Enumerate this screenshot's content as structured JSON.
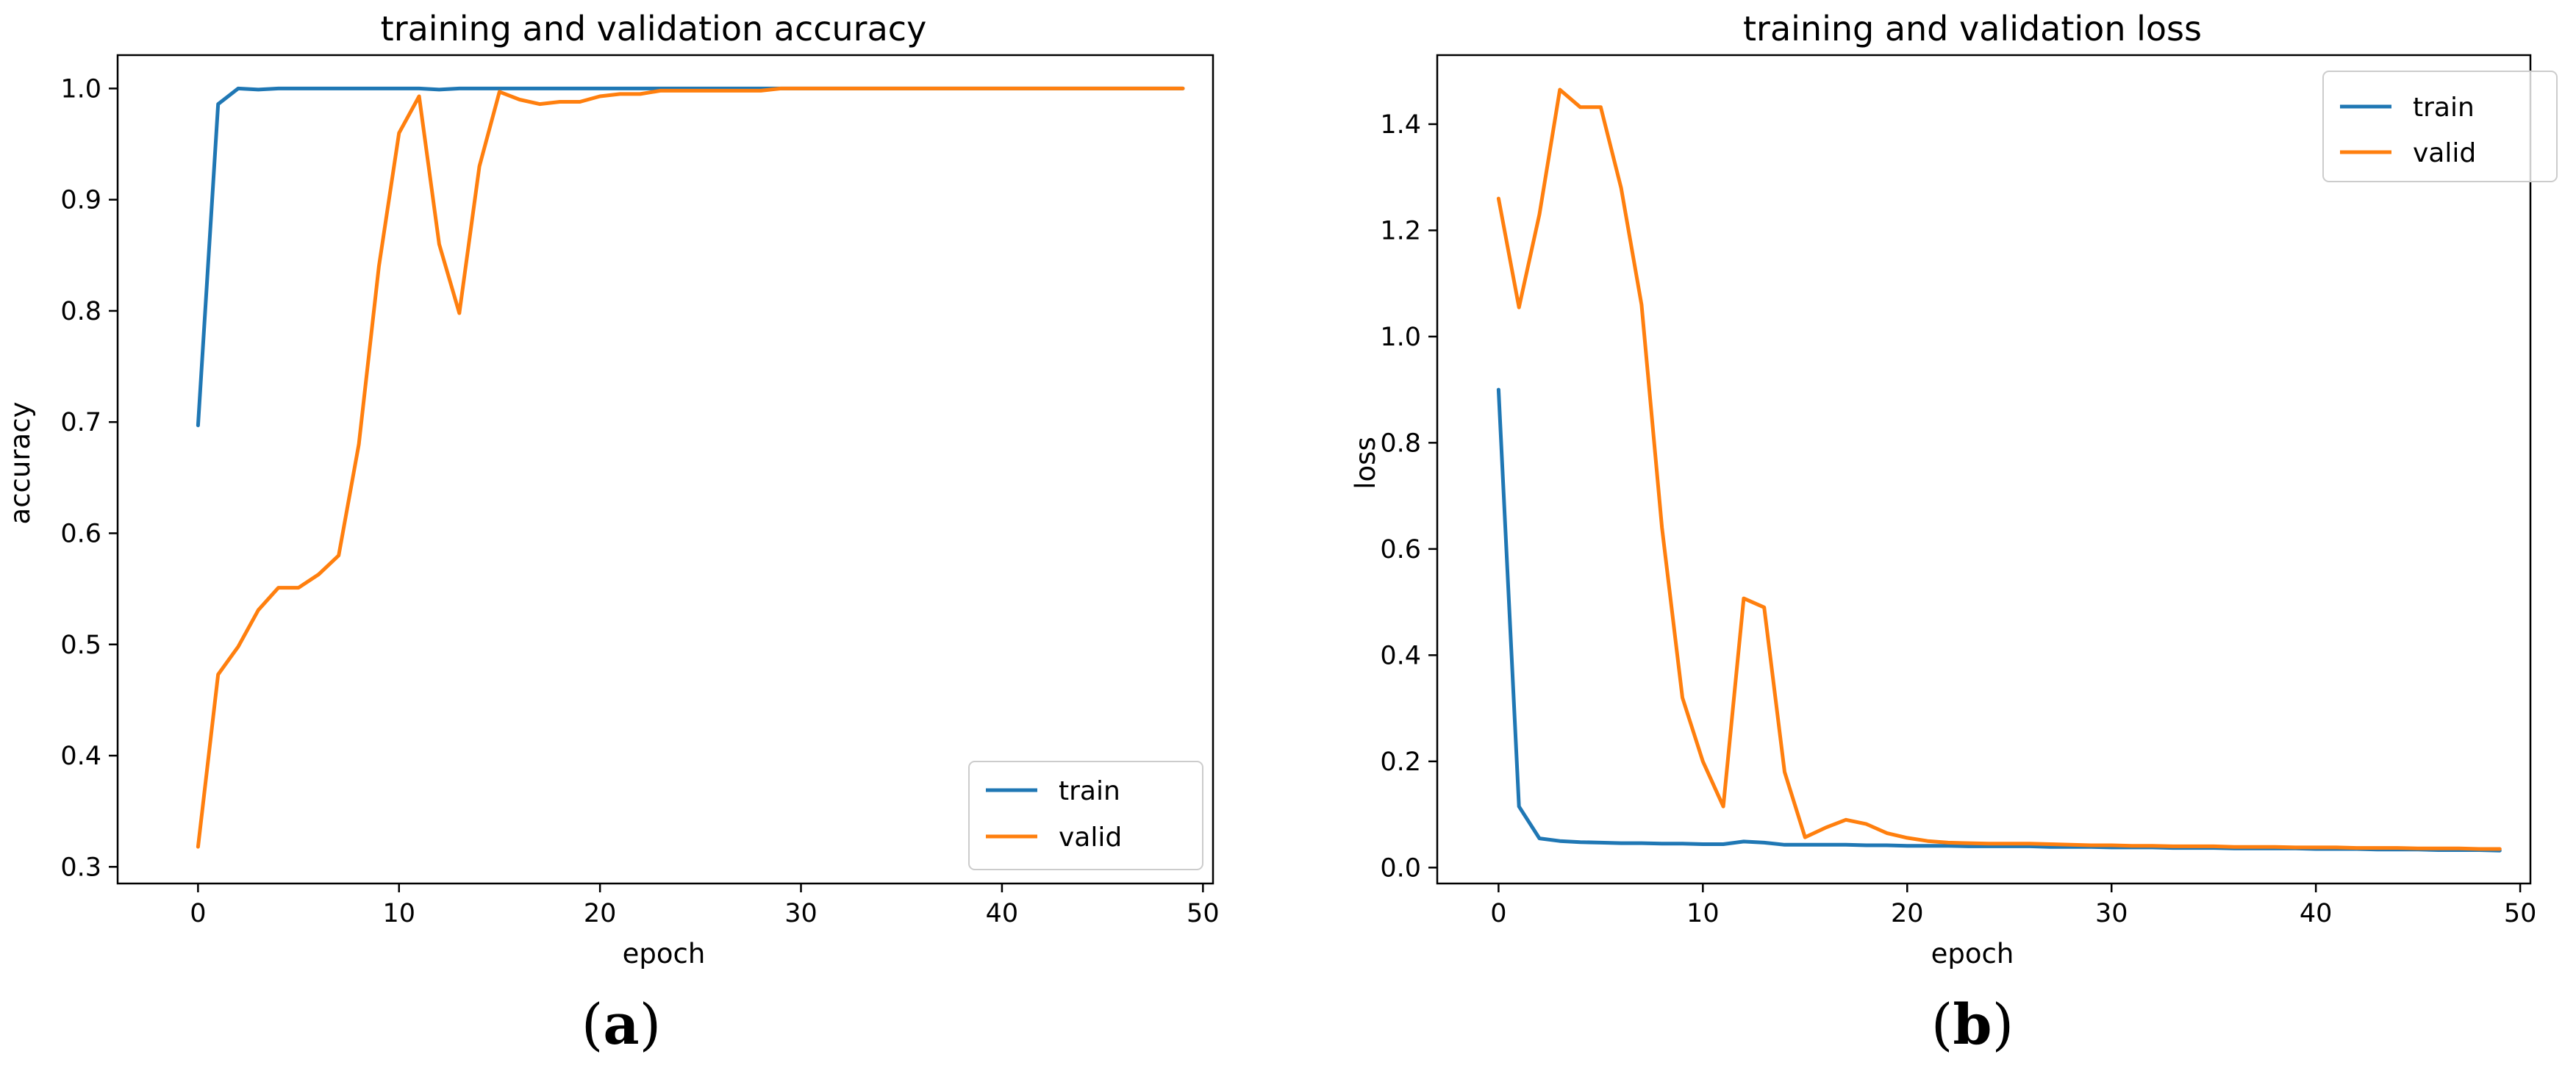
{
  "colors": {
    "train": "#1f77b4",
    "valid": "#ff7f0e"
  },
  "captions": [
    "a",
    "b"
  ],
  "chart_data": [
    {
      "type": "line",
      "title": "training and validation accuracy",
      "xlabel": "epoch",
      "ylabel": "accuracy",
      "xlim": [
        -4,
        50.5
      ],
      "ylim": [
        0.285,
        1.03
      ],
      "xticks": [
        0,
        10,
        20,
        30,
        40,
        50
      ],
      "xtick_labels": [
        "0",
        "10",
        "20",
        "30",
        "40",
        "50"
      ],
      "yticks": [
        0.3,
        0.4,
        0.5,
        0.6,
        0.7,
        0.8,
        0.9,
        1.0
      ],
      "ytick_labels": [
        "0.3",
        "0.4",
        "0.5",
        "0.6",
        "0.7",
        "0.8",
        "0.9",
        "1.0"
      ],
      "grid": false,
      "legend_position": "lower-right",
      "series": [
        {
          "name": "train",
          "color": "#1f77b4",
          "x": [
            0,
            1,
            2,
            3,
            4,
            5,
            6,
            7,
            8,
            9,
            10,
            11,
            12,
            13,
            14,
            15,
            16,
            17,
            18,
            19,
            20,
            21,
            22,
            23,
            24,
            25,
            26,
            27,
            28,
            29,
            30,
            31,
            32,
            33,
            34,
            35,
            36,
            37,
            38,
            39,
            40,
            41,
            42,
            43,
            44,
            45,
            46,
            47,
            48,
            49
          ],
          "y": [
            0.697,
            0.986,
            1.0,
            0.999,
            1.0,
            1.0,
            1.0,
            1.0,
            1.0,
            1.0,
            1.0,
            1.0,
            0.999,
            1.0,
            1.0,
            1.0,
            1.0,
            1.0,
            1.0,
            1.0,
            1.0,
            1.0,
            1.0,
            1.0,
            1.0,
            1.0,
            1.0,
            1.0,
            1.0,
            1.0,
            1.0,
            1.0,
            1.0,
            1.0,
            1.0,
            1.0,
            1.0,
            1.0,
            1.0,
            1.0,
            1.0,
            1.0,
            1.0,
            1.0,
            1.0,
            1.0,
            1.0,
            1.0,
            1.0,
            1.0
          ]
        },
        {
          "name": "valid",
          "color": "#ff7f0e",
          "x": [
            0,
            1,
            2,
            3,
            4,
            5,
            6,
            7,
            8,
            9,
            10,
            11,
            12,
            13,
            14,
            15,
            16,
            17,
            18,
            19,
            20,
            21,
            22,
            23,
            24,
            25,
            26,
            27,
            28,
            29,
            30,
            31,
            32,
            33,
            34,
            35,
            36,
            37,
            38,
            39,
            40,
            41,
            42,
            43,
            44,
            45,
            46,
            47,
            48,
            49
          ],
          "y": [
            0.318,
            0.473,
            0.498,
            0.531,
            0.551,
            0.551,
            0.563,
            0.58,
            0.68,
            0.84,
            0.96,
            0.993,
            0.86,
            0.798,
            0.93,
            0.997,
            0.99,
            0.986,
            0.988,
            0.988,
            0.993,
            0.995,
            0.995,
            0.998,
            0.998,
            0.998,
            0.998,
            0.998,
            0.998,
            1.0,
            1.0,
            1.0,
            1.0,
            1.0,
            1.0,
            1.0,
            1.0,
            1.0,
            1.0,
            1.0,
            1.0,
            1.0,
            1.0,
            1.0,
            1.0,
            1.0,
            1.0,
            1.0,
            1.0,
            1.0
          ]
        }
      ]
    },
    {
      "type": "line",
      "title": "training and validation loss",
      "xlabel": "epoch",
      "ylabel": "loss",
      "xlim": [
        -3,
        50.5
      ],
      "ylim": [
        -0.03,
        1.53
      ],
      "xticks": [
        0,
        10,
        20,
        30,
        40,
        50
      ],
      "xtick_labels": [
        "0",
        "10",
        "20",
        "30",
        "40",
        "50"
      ],
      "yticks": [
        0.0,
        0.2,
        0.4,
        0.6,
        0.8,
        1.0,
        1.2,
        1.4
      ],
      "ytick_labels": [
        "0.0",
        "0.2",
        "0.4",
        "0.6",
        "0.8",
        "1.0",
        "1.2",
        "1.4"
      ],
      "grid": false,
      "legend_position": "upper-right",
      "series": [
        {
          "name": "train",
          "color": "#1f77b4",
          "x": [
            0,
            1,
            2,
            3,
            4,
            5,
            6,
            7,
            8,
            9,
            10,
            11,
            12,
            13,
            14,
            15,
            16,
            17,
            18,
            19,
            20,
            21,
            22,
            23,
            24,
            25,
            26,
            27,
            28,
            29,
            30,
            31,
            32,
            33,
            34,
            35,
            36,
            37,
            38,
            39,
            40,
            41,
            42,
            43,
            44,
            45,
            46,
            47,
            48,
            49
          ],
          "y": [
            0.9,
            0.115,
            0.055,
            0.05,
            0.048,
            0.047,
            0.046,
            0.046,
            0.045,
            0.045,
            0.044,
            0.044,
            0.049,
            0.047,
            0.043,
            0.043,
            0.043,
            0.043,
            0.042,
            0.042,
            0.041,
            0.041,
            0.041,
            0.04,
            0.04,
            0.04,
            0.04,
            0.039,
            0.039,
            0.039,
            0.038,
            0.038,
            0.038,
            0.037,
            0.037,
            0.037,
            0.036,
            0.036,
            0.036,
            0.036,
            0.035,
            0.035,
            0.035,
            0.034,
            0.034,
            0.034,
            0.033,
            0.033,
            0.033,
            0.032
          ]
        },
        {
          "name": "valid",
          "color": "#ff7f0e",
          "x": [
            0,
            1,
            2,
            3,
            4,
            5,
            6,
            7,
            8,
            9,
            10,
            11,
            12,
            13,
            14,
            15,
            16,
            17,
            18,
            19,
            20,
            21,
            22,
            23,
            24,
            25,
            26,
            27,
            28,
            29,
            30,
            31,
            32,
            33,
            34,
            35,
            36,
            37,
            38,
            39,
            40,
            41,
            42,
            43,
            44,
            45,
            46,
            47,
            48,
            49
          ],
          "y": [
            1.26,
            1.055,
            1.23,
            1.465,
            1.432,
            1.432,
            1.28,
            1.06,
            0.64,
            0.32,
            0.2,
            0.115,
            0.507,
            0.49,
            0.18,
            0.057,
            0.075,
            0.09,
            0.082,
            0.065,
            0.056,
            0.05,
            0.047,
            0.046,
            0.045,
            0.045,
            0.045,
            0.044,
            0.043,
            0.042,
            0.042,
            0.041,
            0.041,
            0.04,
            0.04,
            0.04,
            0.039,
            0.039,
            0.039,
            0.038,
            0.038,
            0.038,
            0.037,
            0.037,
            0.037,
            0.036,
            0.036,
            0.036,
            0.035,
            0.035
          ]
        }
      ]
    }
  ]
}
